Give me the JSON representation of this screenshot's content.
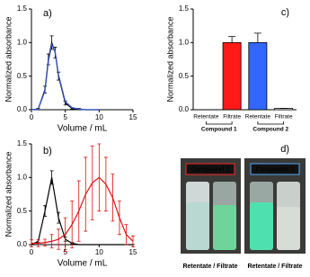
{
  "chart_data": [
    {
      "type": "line",
      "label": "a)",
      "xlabel": "Volume / mL",
      "ylabel": "Normalized absorbance",
      "xlim": [
        0,
        15
      ],
      "xticks": [
        0,
        5,
        10,
        15
      ],
      "ylim": [
        0,
        1.5
      ],
      "yticks": [
        {
          "value": 0,
          "label": "0.0"
        },
        {
          "value": 0.5,
          "label": "0.5"
        },
        {
          "value": 1,
          "label": "1.0"
        },
        {
          "value": 1.5,
          "label": "1.5"
        }
      ],
      "series": [
        {
          "color": "#000000",
          "x": [
            0,
            1,
            2,
            2.5,
            3,
            3.5,
            4,
            5,
            6,
            7,
            8,
            10
          ],
          "values": [
            0,
            0.01,
            0.3,
            0.75,
            1.0,
            0.85,
            0.5,
            0.1,
            0.02,
            0.01,
            0,
            0
          ],
          "errors": [
            0,
            0.01,
            0.05,
            0.08,
            0.1,
            0.08,
            0.06,
            0.03,
            0.01,
            0.01,
            0,
            0
          ]
        },
        {
          "color": "#3355cc",
          "x": [
            0,
            1,
            2,
            2.5,
            3,
            3.5,
            4,
            5,
            6,
            7,
            8,
            10
          ],
          "values": [
            0,
            0.01,
            0.28,
            0.72,
            0.97,
            0.86,
            0.52,
            0.12,
            0.03,
            0.01,
            0,
            0
          ]
        }
      ]
    },
    {
      "type": "line",
      "label": "b)",
      "xlabel": "Volume / mL",
      "ylabel": "Normalized absorbance",
      "xlim": [
        0,
        15
      ],
      "xticks": [
        0,
        5,
        10,
        15
      ],
      "ylim": [
        0,
        1.5
      ],
      "yticks": [
        {
          "value": 0,
          "label": "0.0"
        },
        {
          "value": 0.5,
          "label": "0.5"
        },
        {
          "value": 1,
          "label": "1.0"
        },
        {
          "value": 1.5,
          "label": "1.5"
        }
      ],
      "series": [
        {
          "color": "#000000",
          "x": [
            0,
            1,
            2,
            3,
            4,
            5,
            6,
            7,
            8,
            9,
            10,
            11,
            12,
            13,
            14,
            15
          ],
          "values": [
            0,
            0.05,
            0.5,
            1.0,
            0.4,
            0.08,
            0.02,
            0,
            0,
            0,
            0,
            0,
            0,
            0,
            0,
            0
          ],
          "errors": [
            0,
            0.02,
            0.08,
            0.1,
            0.08,
            0.03,
            0.01,
            0,
            0,
            0,
            0,
            0,
            0,
            0,
            0,
            0
          ]
        },
        {
          "color": "#dd1111",
          "x": [
            0,
            1,
            2,
            3,
            4,
            5,
            6,
            7,
            8,
            9,
            10,
            11,
            12,
            13,
            14,
            15
          ],
          "values": [
            0.02,
            0.02,
            0.03,
            0.05,
            0.08,
            0.15,
            0.3,
            0.5,
            0.75,
            0.92,
            1.0,
            0.9,
            0.7,
            0.4,
            0.15,
            0.05
          ],
          "errors": [
            0.05,
            0.05,
            0.05,
            0.1,
            0.15,
            0.25,
            0.35,
            0.45,
            0.55,
            0.55,
            0.5,
            0.4,
            0.35,
            0.25,
            0.15,
            0.08
          ]
        }
      ]
    },
    {
      "type": "bar",
      "label": "c)",
      "ylabel": "Normalized absorbance",
      "categories": [
        "Retentate",
        "Filtrate",
        "Retentate",
        "Filtrate"
      ],
      "values": [
        0,
        1.0,
        1.0,
        0.02
      ],
      "errors": [
        0,
        0.09,
        0.14,
        0
      ],
      "colors": [
        "#ffffff",
        "#ff1a1a",
        "#3366ff",
        "#ffffff"
      ],
      "ylim": [
        0,
        1.5
      ],
      "yticks": [
        {
          "value": 0,
          "label": "0.0"
        },
        {
          "value": 0.5,
          "label": "0.5"
        },
        {
          "value": 1,
          "label": "1.0"
        },
        {
          "value": 1.5,
          "label": "1.5"
        }
      ],
      "groups": [
        {
          "label": "Compound 1",
          "color": "#cc0000"
        },
        {
          "label": "Compound 2",
          "color": "#22338a"
        }
      ]
    }
  ],
  "photo": {
    "label": "d)",
    "tags": [
      {
        "text": "Compound 1",
        "color": "#ff2a2a"
      },
      {
        "text": "Compound 2",
        "color": "#55aaff"
      }
    ],
    "captions": [
      "Retentate / Filtrate",
      "Retentate / Filtrate"
    ]
  }
}
